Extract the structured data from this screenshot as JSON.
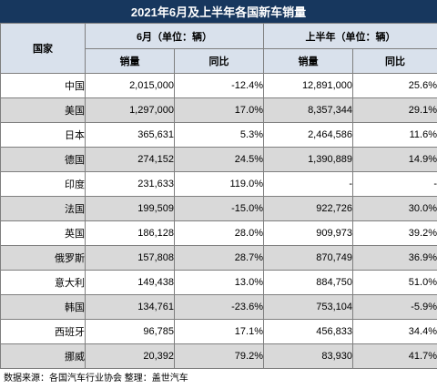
{
  "title": "2021年6月及上半年各国新车销量",
  "headers": {
    "country": "国家",
    "june": "6月（单位：辆）",
    "h1": "上半年（单位：辆）",
    "sales": "销量",
    "yoy": "同比"
  },
  "rows": [
    {
      "country": "中国",
      "june_sales": "2,015,000",
      "june_yoy": "-12.4%",
      "h1_sales": "12,891,000",
      "h1_yoy": "25.6%"
    },
    {
      "country": "美国",
      "june_sales": "1,297,000",
      "june_yoy": "17.0%",
      "h1_sales": "8,357,344",
      "h1_yoy": "29.1%"
    },
    {
      "country": "日本",
      "june_sales": "365,631",
      "june_yoy": "5.3%",
      "h1_sales": "2,464,586",
      "h1_yoy": "11.6%"
    },
    {
      "country": "德国",
      "june_sales": "274,152",
      "june_yoy": "24.5%",
      "h1_sales": "1,390,889",
      "h1_yoy": "14.9%"
    },
    {
      "country": "印度",
      "june_sales": "231,633",
      "june_yoy": "119.0%",
      "h1_sales": "-",
      "h1_yoy": "-"
    },
    {
      "country": "法国",
      "june_sales": "199,509",
      "june_yoy": "-15.0%",
      "h1_sales": "922,726",
      "h1_yoy": "30.0%"
    },
    {
      "country": "英国",
      "june_sales": "186,128",
      "june_yoy": "28.0%",
      "h1_sales": "909,973",
      "h1_yoy": "39.2%"
    },
    {
      "country": "俄罗斯",
      "june_sales": "157,808",
      "june_yoy": "28.7%",
      "h1_sales": "870,749",
      "h1_yoy": "36.9%"
    },
    {
      "country": "意大利",
      "june_sales": "149,438",
      "june_yoy": "13.0%",
      "h1_sales": "884,750",
      "h1_yoy": "51.0%"
    },
    {
      "country": "韩国",
      "june_sales": "134,761",
      "june_yoy": "-23.6%",
      "h1_sales": "753,104",
      "h1_yoy": "-5.9%"
    },
    {
      "country": "西班牙",
      "june_sales": "96,785",
      "june_yoy": "17.1%",
      "h1_sales": "456,833",
      "h1_yoy": "34.4%"
    },
    {
      "country": "挪威",
      "june_sales": "20,392",
      "june_yoy": "79.2%",
      "h1_sales": "83,930",
      "h1_yoy": "41.7%"
    }
  ],
  "footer": "数据来源：各国汽车行业协会 整理：盖世汽车",
  "colors": {
    "title_bg": "#17375e",
    "header_bg": "#d9e1ec",
    "stripe_bg": "#d9d9d9",
    "positive": "#e0312c",
    "negative": "#3a9b3a"
  }
}
